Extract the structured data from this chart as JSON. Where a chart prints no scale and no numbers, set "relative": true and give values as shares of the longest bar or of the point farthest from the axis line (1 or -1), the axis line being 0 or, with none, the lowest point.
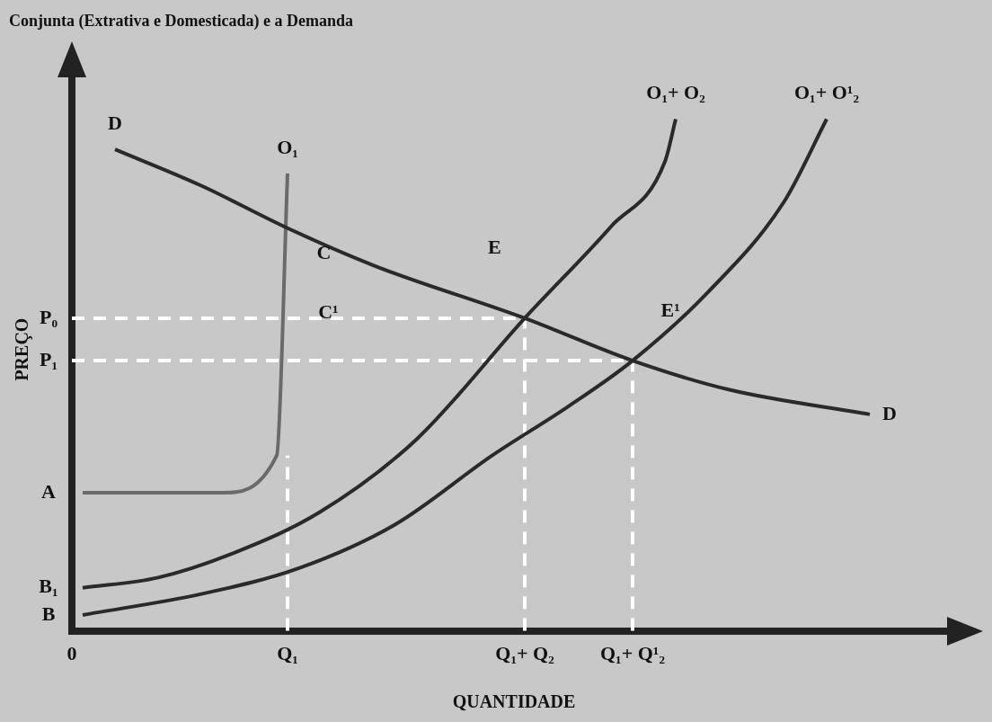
{
  "chart_data": {
    "type": "line",
    "title": "Conjunta (Extrativa e Domesticada) e a Demanda",
    "xlabel": "QUANTIDADE",
    "ylabel": "PREÇO",
    "relative": true,
    "legend": false,
    "marker": "none",
    "categories": [
      "0",
      null,
      null,
      null,
      null,
      null,
      null,
      null,
      null,
      null,
      null,
      null,
      null,
      null,
      null,
      null,
      null,
      null,
      null,
      null,
      "Q₁",
      null,
      null,
      null,
      null,
      null,
      null,
      null,
      null,
      null,
      null,
      null,
      null,
      null,
      null,
      null,
      null,
      null,
      null,
      null,
      null,
      null,
      "Q₁+ Q₂",
      null,
      null,
      null,
      null,
      null,
      null,
      null,
      null,
      null,
      "Q₁+ Q¹₂",
      null,
      null,
      null,
      null,
      null,
      null,
      null,
      null,
      null,
      null,
      null,
      null,
      null,
      null,
      null,
      null,
      null,
      null,
      null,
      null,
      null,
      null,
      null,
      null,
      null,
      null,
      null,
      null,
      null,
      null
    ],
    "series": [
      {
        "name": "D",
        "color": "#2a2a2a",
        "values": [
          null,
          null,
          null,
          null,
          0.941,
          null,
          null,
          null,
          null,
          null,
          null,
          null,
          0.87,
          null,
          null,
          null,
          null,
          null,
          null,
          null,
          0.787,
          null,
          null,
          null,
          null,
          null,
          null,
          null,
          0.714,
          null,
          null,
          null,
          null,
          null,
          null,
          null,
          null,
          null,
          null,
          null,
          null,
          null,
          0.611,
          null,
          null,
          null,
          null,
          null,
          null,
          null,
          null,
          null,
          0.528,
          null,
          null,
          null,
          null,
          null,
          null,
          null,
          null,
          0.471,
          null,
          null,
          null,
          null,
          null,
          null,
          null,
          null,
          null,
          null,
          null,
          null,
          0.423,
          null,
          null,
          null,
          null,
          null,
          null,
          null,
          null
        ]
      },
      {
        "name": "O₁",
        "color": "#6a6a6a",
        "values": [
          null,
          0.27,
          null,
          null,
          null,
          null,
          null,
          null,
          null,
          null,
          null,
          null,
          null,
          null,
          0.27,
          null,
          null,
          null,
          null,
          0.343,
          0.894,
          null,
          null,
          null,
          null,
          null,
          null,
          null,
          null,
          null,
          null,
          null,
          null,
          null,
          null,
          null,
          null,
          null,
          null,
          null,
          null,
          null,
          null,
          null,
          null,
          null,
          null,
          null,
          null,
          null,
          null,
          null,
          null,
          null,
          null,
          null,
          null,
          null,
          null,
          null,
          null,
          null,
          null,
          null,
          null,
          null,
          null,
          null,
          null,
          null,
          null,
          null,
          null,
          null,
          null,
          null,
          null,
          null,
          null,
          null,
          null,
          null,
          null
        ]
      },
      {
        "name": "O₁+ O₂",
        "color": "#2a2a2a",
        "values": [
          null,
          0.084,
          null,
          null,
          null,
          null,
          null,
          null,
          0.104,
          null,
          null,
          null,
          null,
          null,
          null,
          0.152,
          null,
          null,
          null,
          null,
          null,
          null,
          null,
          0.232,
          null,
          null,
          null,
          null,
          null,
          null,
          null,
          null,
          0.375,
          null,
          null,
          null,
          null,
          null,
          null,
          null,
          null,
          null,
          0.611,
          null,
          null,
          null,
          null,
          null,
          null,
          null,
          0.79,
          null,
          null,
          null,
          null,
          0.917,
          1,
          null,
          null,
          null,
          null,
          null,
          null,
          null,
          null,
          null,
          null,
          null,
          null,
          null,
          null,
          null,
          null,
          null,
          null,
          null,
          null,
          null,
          null,
          null,
          null,
          null,
          null
        ]
      },
      {
        "name": "O₁+ O¹₂",
        "color": "#2a2a2a",
        "values": [
          null,
          0.031,
          null,
          null,
          null,
          null,
          null,
          null,
          null,
          null,
          null,
          null,
          0.072,
          null,
          null,
          null,
          null,
          null,
          null,
          null,
          null,
          0.122,
          null,
          null,
          null,
          null,
          null,
          null,
          null,
          null,
          0.208,
          null,
          null,
          null,
          null,
          null,
          null,
          null,
          null,
          0.343,
          null,
          null,
          null,
          null,
          null,
          null,
          0.438,
          null,
          null,
          null,
          null,
          null,
          0.528,
          null,
          null,
          null,
          null,
          null,
          null,
          0.662,
          null,
          null,
          null,
          null,
          null,
          null,
          0.837,
          null,
          null,
          null,
          1,
          null,
          null,
          null,
          null,
          null,
          null,
          null,
          null,
          null,
          null,
          null,
          null
        ]
      }
    ],
    "ref_lines": [
      {
        "axis": "y",
        "value": 0.611,
        "label": "P₀",
        "color": "#ffffff",
        "line_style": "dashed"
      },
      {
        "axis": "y",
        "value": 0.528,
        "label": "P₁",
        "color": "#ffffff",
        "line_style": "dashed"
      },
      {
        "axis": "x",
        "value": "Q₁+ Q₂",
        "color": "#ffffff",
        "line_style": "dashed"
      },
      {
        "axis": "x",
        "value": "Q₁+ Q¹₂",
        "color": "#ffffff",
        "line_style": "dashed"
      },
      {
        "axis": "x",
        "value": "Q₁",
        "color": "#ffffff",
        "line_style": "dashed"
      }
    ],
    "annotations": [
      "C",
      "C¹",
      "E",
      "E¹",
      "A",
      "B₁",
      "B"
    ]
  }
}
